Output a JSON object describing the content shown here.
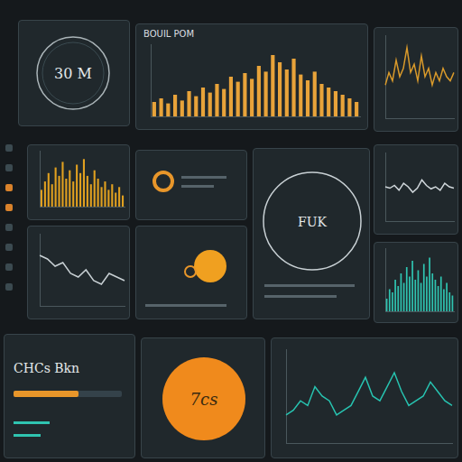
{
  "gauge": {
    "text": "30 M"
  },
  "ring": {
    "text": "FUK"
  },
  "status": {
    "title": "CHCs Bkn",
    "progress": [
      60
    ]
  },
  "badge": {
    "text": "7cs"
  },
  "chart_data": [
    {
      "type": "bar",
      "title": "BOUIL POM",
      "color": "#e8a33a",
      "tick_labels": false,
      "categories": [
        null,
        null,
        null,
        null,
        null,
        null,
        null,
        null,
        null,
        null,
        null,
        null,
        null,
        null,
        null,
        null,
        null,
        null,
        null,
        null,
        null,
        null,
        null,
        null,
        null,
        null,
        null,
        null,
        null,
        null
      ],
      "values": [
        20,
        25,
        18,
        30,
        22,
        35,
        28,
        40,
        33,
        45,
        38,
        55,
        48,
        60,
        52,
        70,
        62,
        85,
        75,
        65,
        80,
        58,
        50,
        62,
        45,
        40,
        35,
        30,
        25,
        20
      ],
      "ylim": [
        0,
        100
      ]
    },
    {
      "type": "line",
      "color": "#d99a2b",
      "tick_labels": false,
      "categories": [
        null,
        null,
        null,
        null,
        null,
        null,
        null,
        null,
        null,
        null,
        null,
        null,
        null,
        null,
        null,
        null,
        null,
        null,
        null,
        null
      ],
      "values": [
        40,
        55,
        45,
        70,
        50,
        60,
        85,
        55,
        65,
        45,
        75,
        50,
        60,
        40,
        55,
        45,
        60,
        50,
        45,
        55
      ],
      "ylim": [
        0,
        100
      ]
    },
    {
      "type": "bar",
      "color": "#e0a020",
      "tick_labels": false,
      "categories": [
        null,
        null,
        null,
        null,
        null,
        null,
        null,
        null,
        null,
        null,
        null,
        null,
        null,
        null,
        null,
        null,
        null,
        null,
        null,
        null,
        null,
        null,
        null,
        null
      ],
      "values": [
        30,
        45,
        60,
        40,
        70,
        55,
        80,
        50,
        65,
        45,
        75,
        60,
        85,
        55,
        40,
        65,
        50,
        35,
        45,
        30,
        40,
        25,
        35,
        20
      ],
      "ylim": [
        0,
        100
      ]
    },
    {
      "type": "line",
      "color": "#c8d0d4",
      "tick_labels": false,
      "categories": [
        null,
        null,
        null,
        null,
        null,
        null,
        null,
        null,
        null,
        null,
        null,
        null
      ],
      "values": [
        70,
        65,
        55,
        60,
        45,
        40,
        50,
        35,
        30,
        45,
        40,
        35
      ],
      "ylim": [
        0,
        100
      ]
    },
    {
      "type": "bar",
      "color": "#2fc4b0",
      "tick_labels": false,
      "categories": [
        null,
        null,
        null,
        null,
        null,
        null,
        null,
        null,
        null,
        null,
        null,
        null,
        null,
        null,
        null,
        null,
        null,
        null,
        null,
        null,
        null,
        null,
        null,
        null
      ],
      "values": [
        20,
        35,
        30,
        50,
        40,
        60,
        45,
        70,
        55,
        80,
        50,
        65,
        45,
        75,
        55,
        85,
        60,
        50,
        40,
        55,
        35,
        45,
        30,
        25
      ],
      "ylim": [
        0,
        100
      ]
    },
    {
      "type": "line",
      "color": "#27c3b0",
      "tick_labels": false,
      "categories": [
        null,
        null,
        null,
        null,
        null,
        null,
        null,
        null,
        null,
        null,
        null,
        null,
        null,
        null,
        null,
        null,
        null,
        null,
        null,
        null,
        null,
        null,
        null,
        null
      ],
      "values": [
        30,
        35,
        45,
        40,
        60,
        50,
        45,
        30,
        35,
        40,
        55,
        70,
        50,
        45,
        60,
        75,
        55,
        40,
        45,
        50,
        65,
        55,
        45,
        40
      ],
      "ylim": [
        0,
        100
      ]
    },
    {
      "type": "line",
      "color": "#cfd6da",
      "tick_labels": false,
      "categories": [
        null,
        null,
        null,
        null,
        null,
        null,
        null,
        null,
        null,
        null,
        null,
        null,
        null,
        null,
        null,
        null
      ],
      "values": [
        50,
        48,
        52,
        45,
        55,
        50,
        42,
        48,
        60,
        52,
        47,
        50,
        45,
        55,
        50,
        48
      ],
      "ylim": [
        0,
        100
      ]
    }
  ]
}
